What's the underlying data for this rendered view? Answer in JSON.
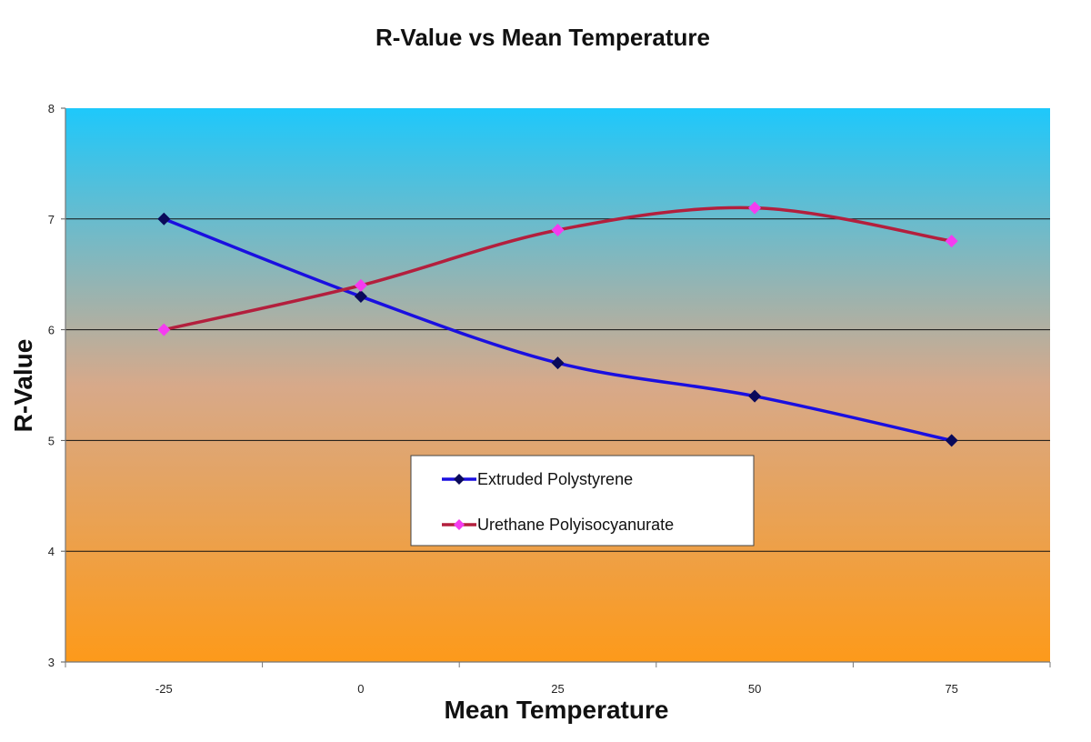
{
  "chart_data": {
    "type": "line",
    "title": "R-Value vs Mean Temperature",
    "xlabel": "Mean Temperature",
    "ylabel": "R-Value",
    "categories": [
      "-25",
      "0",
      "25",
      "50",
      "75"
    ],
    "ylim": [
      3,
      8
    ],
    "yticks": [
      "3",
      "4",
      "5",
      "6",
      "7",
      "8"
    ],
    "grid": true,
    "legend_position": "center",
    "background": {
      "top": "#1ec8fb",
      "bottom": "#fd9a1a"
    },
    "series": [
      {
        "name": "Extruded Polystyrene",
        "values": [
          7.0,
          6.3,
          5.7,
          5.4,
          5.0
        ],
        "line_color": "#1a0fe0",
        "marker_color": "#0a0a5a"
      },
      {
        "name": "Urethane Polyisocyanurate",
        "values": [
          6.0,
          6.4,
          6.9,
          7.1,
          6.8
        ],
        "line_color": "#b31f3d",
        "marker_color": "#f43cf0"
      }
    ]
  }
}
